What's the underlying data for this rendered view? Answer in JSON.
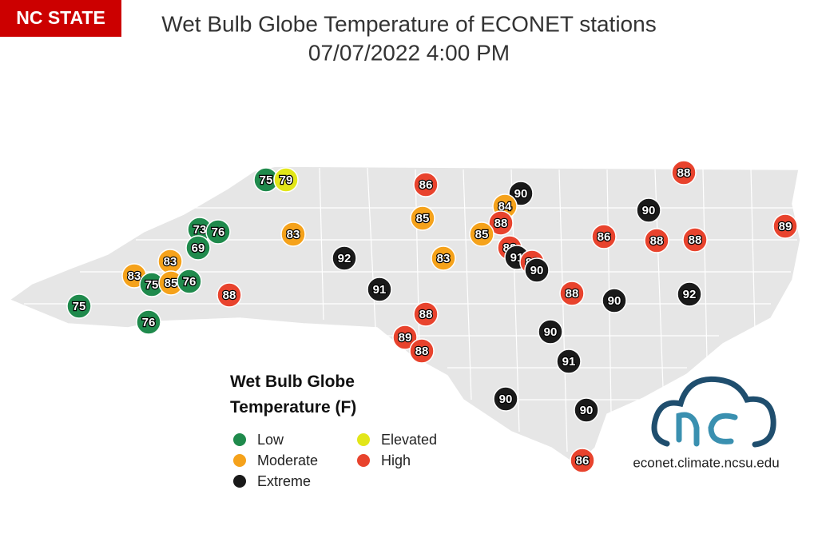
{
  "header": {
    "badge": "NC STATE",
    "title": "Wet Bulb Globe Temperature of ECONET stations",
    "subtitle": "07/07/2022 4:00 PM"
  },
  "legend": {
    "title": "Wet Bulb Globe Temperature (F)",
    "items": [
      {
        "label": "Low",
        "color": "#1f8a4c"
      },
      {
        "label": "Elevated",
        "color": "#e2e619"
      },
      {
        "label": "Moderate",
        "color": "#f5a21b"
      },
      {
        "label": "High",
        "color": "#e8432d"
      },
      {
        "label": "Extreme",
        "color": "#1a1a1a"
      }
    ]
  },
  "stations": [
    {
      "value": 75,
      "color": "#1f8a4c"
    },
    {
      "value": 79,
      "color": "#e2e619"
    },
    {
      "value": 86,
      "color": "#e8432d"
    },
    {
      "value": 90,
      "color": "#1a1a1a"
    },
    {
      "value": 84,
      "color": "#f5a21b"
    },
    {
      "value": 88,
      "color": "#e8432d"
    },
    {
      "value": 90,
      "color": "#1a1a1a"
    },
    {
      "value": 89,
      "color": "#e8432d"
    },
    {
      "value": 85,
      "color": "#f5a21b"
    },
    {
      "value": 88,
      "color": "#e8432d"
    },
    {
      "value": 73,
      "color": "#1f8a4c"
    },
    {
      "value": 76,
      "color": "#1f8a4c"
    },
    {
      "value": 83,
      "color": "#f5a21b"
    },
    {
      "value": 85,
      "color": "#f5a21b"
    },
    {
      "value": 86,
      "color": "#e8432d"
    },
    {
      "value": 88,
      "color": "#e8432d"
    },
    {
      "value": 88,
      "color": "#e8432d"
    },
    {
      "value": 69,
      "color": "#1f8a4c"
    },
    {
      "value": 92,
      "color": "#1a1a1a"
    },
    {
      "value": 83,
      "color": "#f5a21b"
    },
    {
      "value": 83,
      "color": "#f5a21b"
    },
    {
      "value": 88,
      "color": "#e8432d"
    },
    {
      "value": 91,
      "color": "#1a1a1a"
    },
    {
      "value": 89,
      "color": "#e8432d"
    },
    {
      "value": 90,
      "color": "#1a1a1a"
    },
    {
      "value": 83,
      "color": "#f5a21b"
    },
    {
      "value": 75,
      "color": "#1f8a4c"
    },
    {
      "value": 85,
      "color": "#f5a21b"
    },
    {
      "value": 76,
      "color": "#1f8a4c"
    },
    {
      "value": 88,
      "color": "#e8432d"
    },
    {
      "value": 91,
      "color": "#1a1a1a"
    },
    {
      "value": 88,
      "color": "#e8432d"
    },
    {
      "value": 90,
      "color": "#1a1a1a"
    },
    {
      "value": 92,
      "color": "#1a1a1a"
    },
    {
      "value": 75,
      "color": "#1f8a4c"
    },
    {
      "value": 88,
      "color": "#e8432d"
    },
    {
      "value": 76,
      "color": "#1f8a4c"
    },
    {
      "value": 89,
      "color": "#e8432d"
    },
    {
      "value": 88,
      "color": "#e8432d"
    },
    {
      "value": 90,
      "color": "#1a1a1a"
    },
    {
      "value": 91,
      "color": "#1a1a1a"
    },
    {
      "value": 90,
      "color": "#1a1a1a"
    },
    {
      "value": 90,
      "color": "#1a1a1a"
    },
    {
      "value": 86,
      "color": "#e8432d"
    }
  ],
  "footer": {
    "url": "econet.climate.ncsu.edu"
  }
}
